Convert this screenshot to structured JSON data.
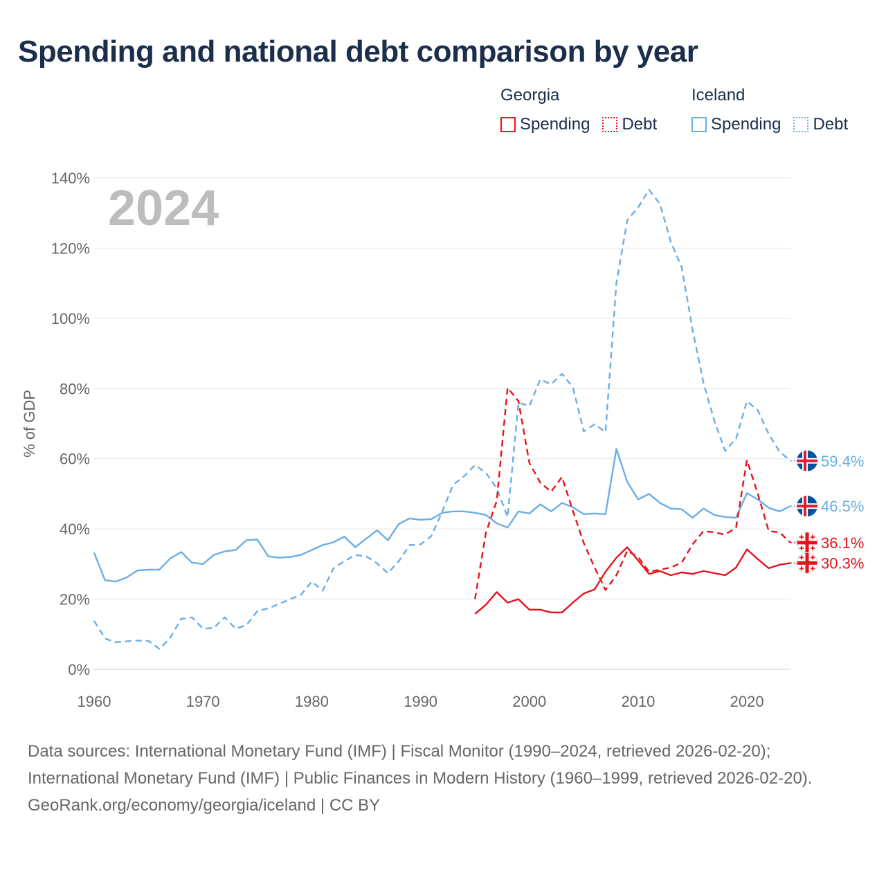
{
  "title": "Spending and national debt comparison by year",
  "legend": {
    "groups": [
      {
        "country": "Georgia",
        "items": [
          {
            "label": "Spending",
            "style": "solid",
            "color": "#e8121b"
          },
          {
            "label": "Debt",
            "style": "dotted",
            "color": "#e8121b"
          }
        ]
      },
      {
        "country": "Iceland",
        "items": [
          {
            "label": "Spending",
            "style": "solid",
            "color": "#6aaee6"
          },
          {
            "label": "Debt",
            "style": "dotted",
            "color": "#6aaee6"
          }
        ]
      }
    ]
  },
  "footer": {
    "sources": "Data sources: International Monetary Fund (IMF) | Fiscal Monitor (1990–2024, retrieved 2026-02-20); International Monetary Fund (IMF) | Public Finances in Modern History (1960–1999, retrieved 2026-02-20).",
    "credit": "GeoRank.org/economy/georgia/iceland | CC BY"
  },
  "chart_data": {
    "type": "line",
    "title": "Spending and national debt comparison by year",
    "year_label": "2024",
    "xlabel": "",
    "ylabel": "% of GDP",
    "xlim": [
      1960,
      2024
    ],
    "ylim": [
      0,
      140
    ],
    "xticks": [
      1960,
      1970,
      1980,
      1990,
      2000,
      2010,
      2020
    ],
    "yticks": [
      0,
      20,
      40,
      60,
      80,
      100,
      120,
      140
    ],
    "ytick_labels": [
      "0%",
      "20%",
      "40%",
      "60%",
      "80%",
      "100%",
      "120%",
      "140%"
    ],
    "grid": true,
    "series": [
      {
        "name": "Iceland Debt",
        "country": "Iceland",
        "metric": "Debt",
        "color": "#6aaee6",
        "dash": true,
        "flag": "iceland",
        "end_label": "59.4%",
        "start_year": 1960,
        "values": [
          13.8,
          8.8,
          7.7,
          8.0,
          8.2,
          8.1,
          5.8,
          9.0,
          14.4,
          14.8,
          11.6,
          11.8,
          14.8,
          11.6,
          12.6,
          16.6,
          17.4,
          18.6,
          20.0,
          21.2,
          25.0,
          22.4,
          28.8,
          30.8,
          32.6,
          32.2,
          30.2,
          27.4,
          30.8,
          35.4,
          35.6,
          38.0,
          45.0,
          52.6,
          55.0,
          58.2,
          56.0,
          51.6,
          43.4,
          76.0,
          75.0,
          82.6,
          81.2,
          84.2,
          80.4,
          67.8,
          69.8,
          67.6,
          110.0,
          128.0,
          131.6,
          136.6,
          132.6,
          121.8,
          114.6,
          96.8,
          81.6,
          70.8,
          62.2,
          65.8,
          76.4,
          73.8,
          67.0,
          62.0,
          59.4
        ]
      },
      {
        "name": "Iceland Spending",
        "country": "Iceland",
        "metric": "Spending",
        "color": "#6aaee6",
        "dash": false,
        "flag": "iceland",
        "end_label": "46.5%",
        "start_year": 1960,
        "values": [
          33.2,
          25.4,
          25.0,
          26.2,
          28.2,
          28.4,
          28.4,
          31.6,
          33.4,
          30.4,
          30.0,
          32.6,
          33.6,
          34.0,
          36.8,
          37.0,
          32.2,
          31.8,
          32.0,
          32.6,
          34.0,
          35.4,
          36.2,
          37.8,
          34.8,
          37.2,
          39.6,
          36.8,
          41.4,
          43.0,
          42.6,
          42.8,
          44.6,
          45.0,
          45.0,
          44.6,
          44.0,
          41.6,
          40.4,
          45.0,
          44.4,
          47.0,
          45.0,
          47.4,
          46.2,
          44.2,
          44.4,
          44.2,
          62.8,
          53.4,
          48.4,
          50.0,
          47.4,
          45.8,
          45.6,
          43.2,
          45.8,
          44.0,
          43.4,
          43.2,
          50.2,
          48.4,
          46.0,
          45.0,
          46.5
        ]
      },
      {
        "name": "Georgia Debt",
        "country": "Georgia",
        "metric": "Debt",
        "color": "#e8121b",
        "dash": true,
        "flag": "georgia",
        "end_label": "36.1%",
        "start_year": 1995,
        "values": [
          20.0,
          38.8,
          48.0,
          80.2,
          76.4,
          58.8,
          53.2,
          50.6,
          54.8,
          45.2,
          36.0,
          29.0,
          22.6,
          26.8,
          33.8,
          32.0,
          27.8,
          28.4,
          29.0,
          30.4,
          35.6,
          39.4,
          39.0,
          38.4,
          40.4,
          59.6,
          50.0,
          39.4,
          39.0,
          36.1
        ]
      },
      {
        "name": "Georgia Spending",
        "country": "Georgia",
        "metric": "Spending",
        "color": "#e8121b",
        "dash": false,
        "flag": "georgia",
        "end_label": "30.3%",
        "start_year": 1995,
        "values": [
          15.8,
          18.4,
          22.0,
          19.0,
          20.0,
          17.0,
          17.0,
          16.2,
          16.2,
          19.0,
          21.6,
          22.8,
          27.8,
          31.8,
          34.8,
          31.0,
          27.2,
          28.0,
          26.8,
          27.6,
          27.2,
          28.0,
          27.4,
          26.8,
          29.0,
          34.2,
          31.4,
          28.8,
          29.8,
          30.3
        ]
      }
    ]
  }
}
